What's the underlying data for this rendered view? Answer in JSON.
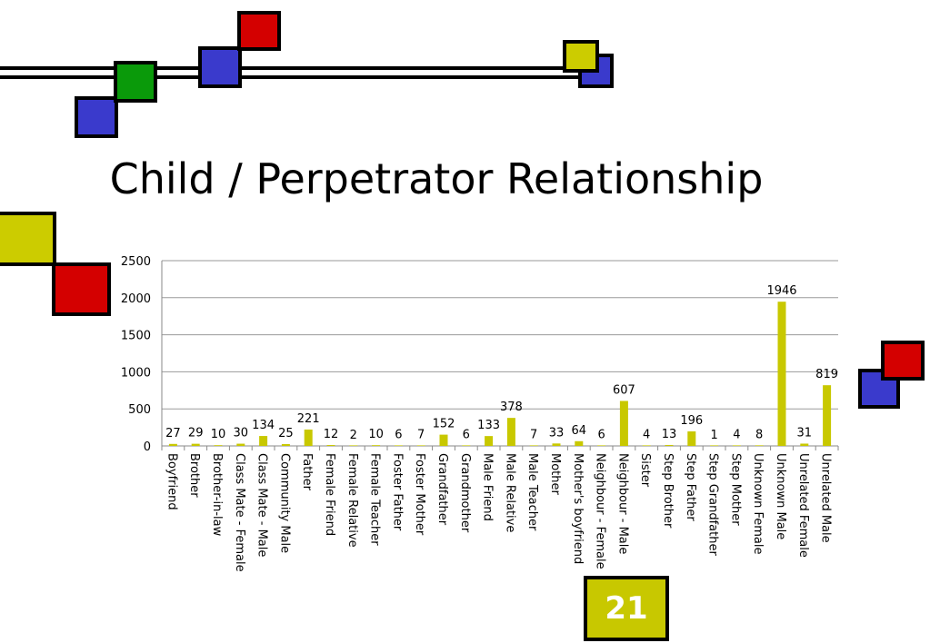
{
  "slide": {
    "title": "Child / Perpetrator Relationship",
    "page_number": "21"
  },
  "colors": {
    "bar": "#c8c800",
    "red": "#d40000",
    "green": "#0a9a0a",
    "blue": "#3a3acc",
    "yellow": "#cccc00"
  },
  "chart_data": {
    "type": "bar",
    "title": "",
    "xlabel": "",
    "ylabel": "",
    "ylim": [
      0,
      2500
    ],
    "yticks": [
      0,
      500,
      1000,
      1500,
      2000,
      2500
    ],
    "grid": true,
    "categories": [
      "Boyfriend",
      "Brother",
      "Brother-in-law",
      "Class Mate - Female",
      "Class Mate - Male",
      "Community Male",
      "Father",
      "Female Friend",
      "Female Relative",
      "Female Teacher",
      "Foster Father",
      "Foster Mother",
      "Grandfather",
      "Grandmother",
      "Male Friend",
      "Male Relative",
      "Male Teacher",
      "Mother",
      "Mother's boyfriend",
      "Neighbour - Female",
      "Neighbour - Male",
      "Sister",
      "Step Brother",
      "Step Father",
      "Step Grandfather",
      "Step Mother",
      "Unknown Female",
      "Unknown Male",
      "Unrelated Female",
      "Unrelated Male"
    ],
    "values": [
      27,
      29,
      10,
      30,
      134,
      25,
      221,
      12,
      2,
      10,
      6,
      7,
      152,
      6,
      133,
      378,
      7,
      33,
      64,
      6,
      607,
      4,
      13,
      196,
      1,
      4,
      8,
      1946,
      31,
      819
    ]
  }
}
